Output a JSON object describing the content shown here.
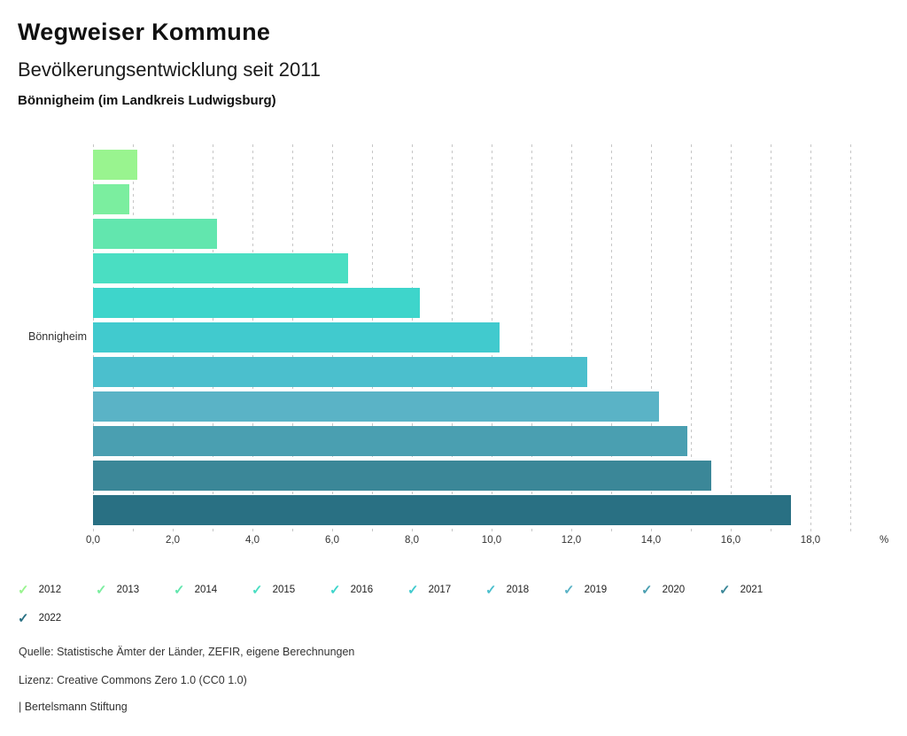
{
  "header": {
    "title": "Wegweiser Kommune",
    "subtitle": "Bevölkerungsentwicklung seit 2011",
    "region": "Bönnigheim (im Landkreis Ludwigsburg)"
  },
  "chart_data": {
    "type": "bar",
    "orientation": "horizontal",
    "title": "Bevölkerungsentwicklung seit 2011",
    "category_label": "Bönnigheim",
    "series": [
      {
        "name": "2012",
        "value": 1.1,
        "color": "#99f48f"
      },
      {
        "name": "2013",
        "value": 0.9,
        "color": "#7bee9f"
      },
      {
        "name": "2014",
        "value": 3.1,
        "color": "#62e6ae"
      },
      {
        "name": "2015",
        "value": 6.4,
        "color": "#4adec2"
      },
      {
        "name": "2016",
        "value": 8.2,
        "color": "#3ed5cb"
      },
      {
        "name": "2017",
        "value": 10.2,
        "color": "#41cace"
      },
      {
        "name": "2018",
        "value": 12.4,
        "color": "#4bbfcd"
      },
      {
        "name": "2019",
        "value": 14.2,
        "color": "#5ab3c6"
      },
      {
        "name": "2020",
        "value": 14.9,
        "color": "#4a9fb1"
      },
      {
        "name": "2021",
        "value": 15.5,
        "color": "#3b8798"
      },
      {
        "name": "2022",
        "value": 17.5,
        "color": "#297083"
      }
    ],
    "xlim": [
      0,
      19
    ],
    "x_tick_values": [
      0,
      2,
      4,
      6,
      8,
      10,
      12,
      14,
      16,
      18
    ],
    "x_tick_labels": [
      "0,0",
      "2,0",
      "4,0",
      "6,0",
      "8,0",
      "10,0",
      "12,0",
      "14,0",
      "16,0",
      "18,0"
    ],
    "axis_unit_label": "%",
    "grid": "vertical-dashed-every-1",
    "legend_position": "bottom",
    "legend_marker": "check-icon"
  },
  "footer": {
    "source": "Quelle: Statistische Ämter der Länder, ZEFIR, eigene Berechnungen",
    "license": "Lizenz: Creative Commons Zero 1.0 (CC0 1.0)",
    "attribution": "| Bertelsmann Stiftung"
  }
}
